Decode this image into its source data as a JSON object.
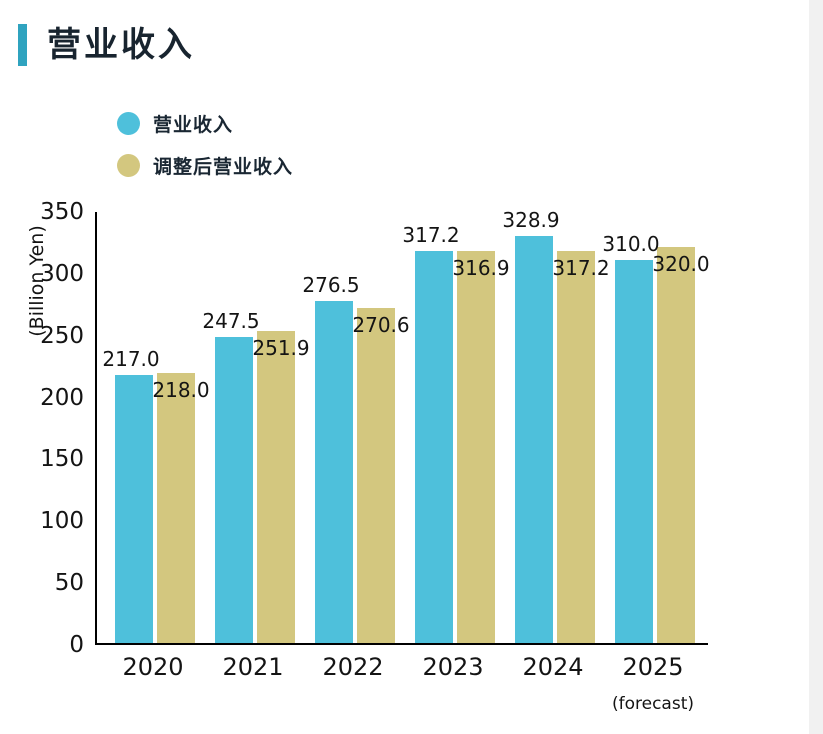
{
  "title": "营业收入",
  "accent_color": "#2fa3bf",
  "chart_data": {
    "type": "bar",
    "title": "营业收入",
    "categories": [
      "2020",
      "2021",
      "2022",
      "2023",
      "2024",
      "2025"
    ],
    "category_note": {
      "index": 5,
      "text": "(forecast)"
    },
    "series": [
      {
        "key": "revenue",
        "name": "营业收入",
        "color": "#4ec0db",
        "values": [
          217.0,
          247.5,
          276.5,
          317.2,
          328.9,
          310.0
        ]
      },
      {
        "key": "adjusted-revenue",
        "name": "调整后营业收入",
        "color": "#d3c77f",
        "values": [
          218.0,
          251.9,
          270.6,
          316.9,
          317.2,
          320.0
        ]
      }
    ],
    "xlabel": "",
    "ylabel": "(Billion Yen)",
    "ylim": [
      0,
      350
    ],
    "yticks": [
      0,
      50,
      100,
      150,
      200,
      250,
      300,
      350
    ],
    "grid": false,
    "data_labels": true,
    "legend_position": "top-left",
    "value_decimals": 1
  }
}
